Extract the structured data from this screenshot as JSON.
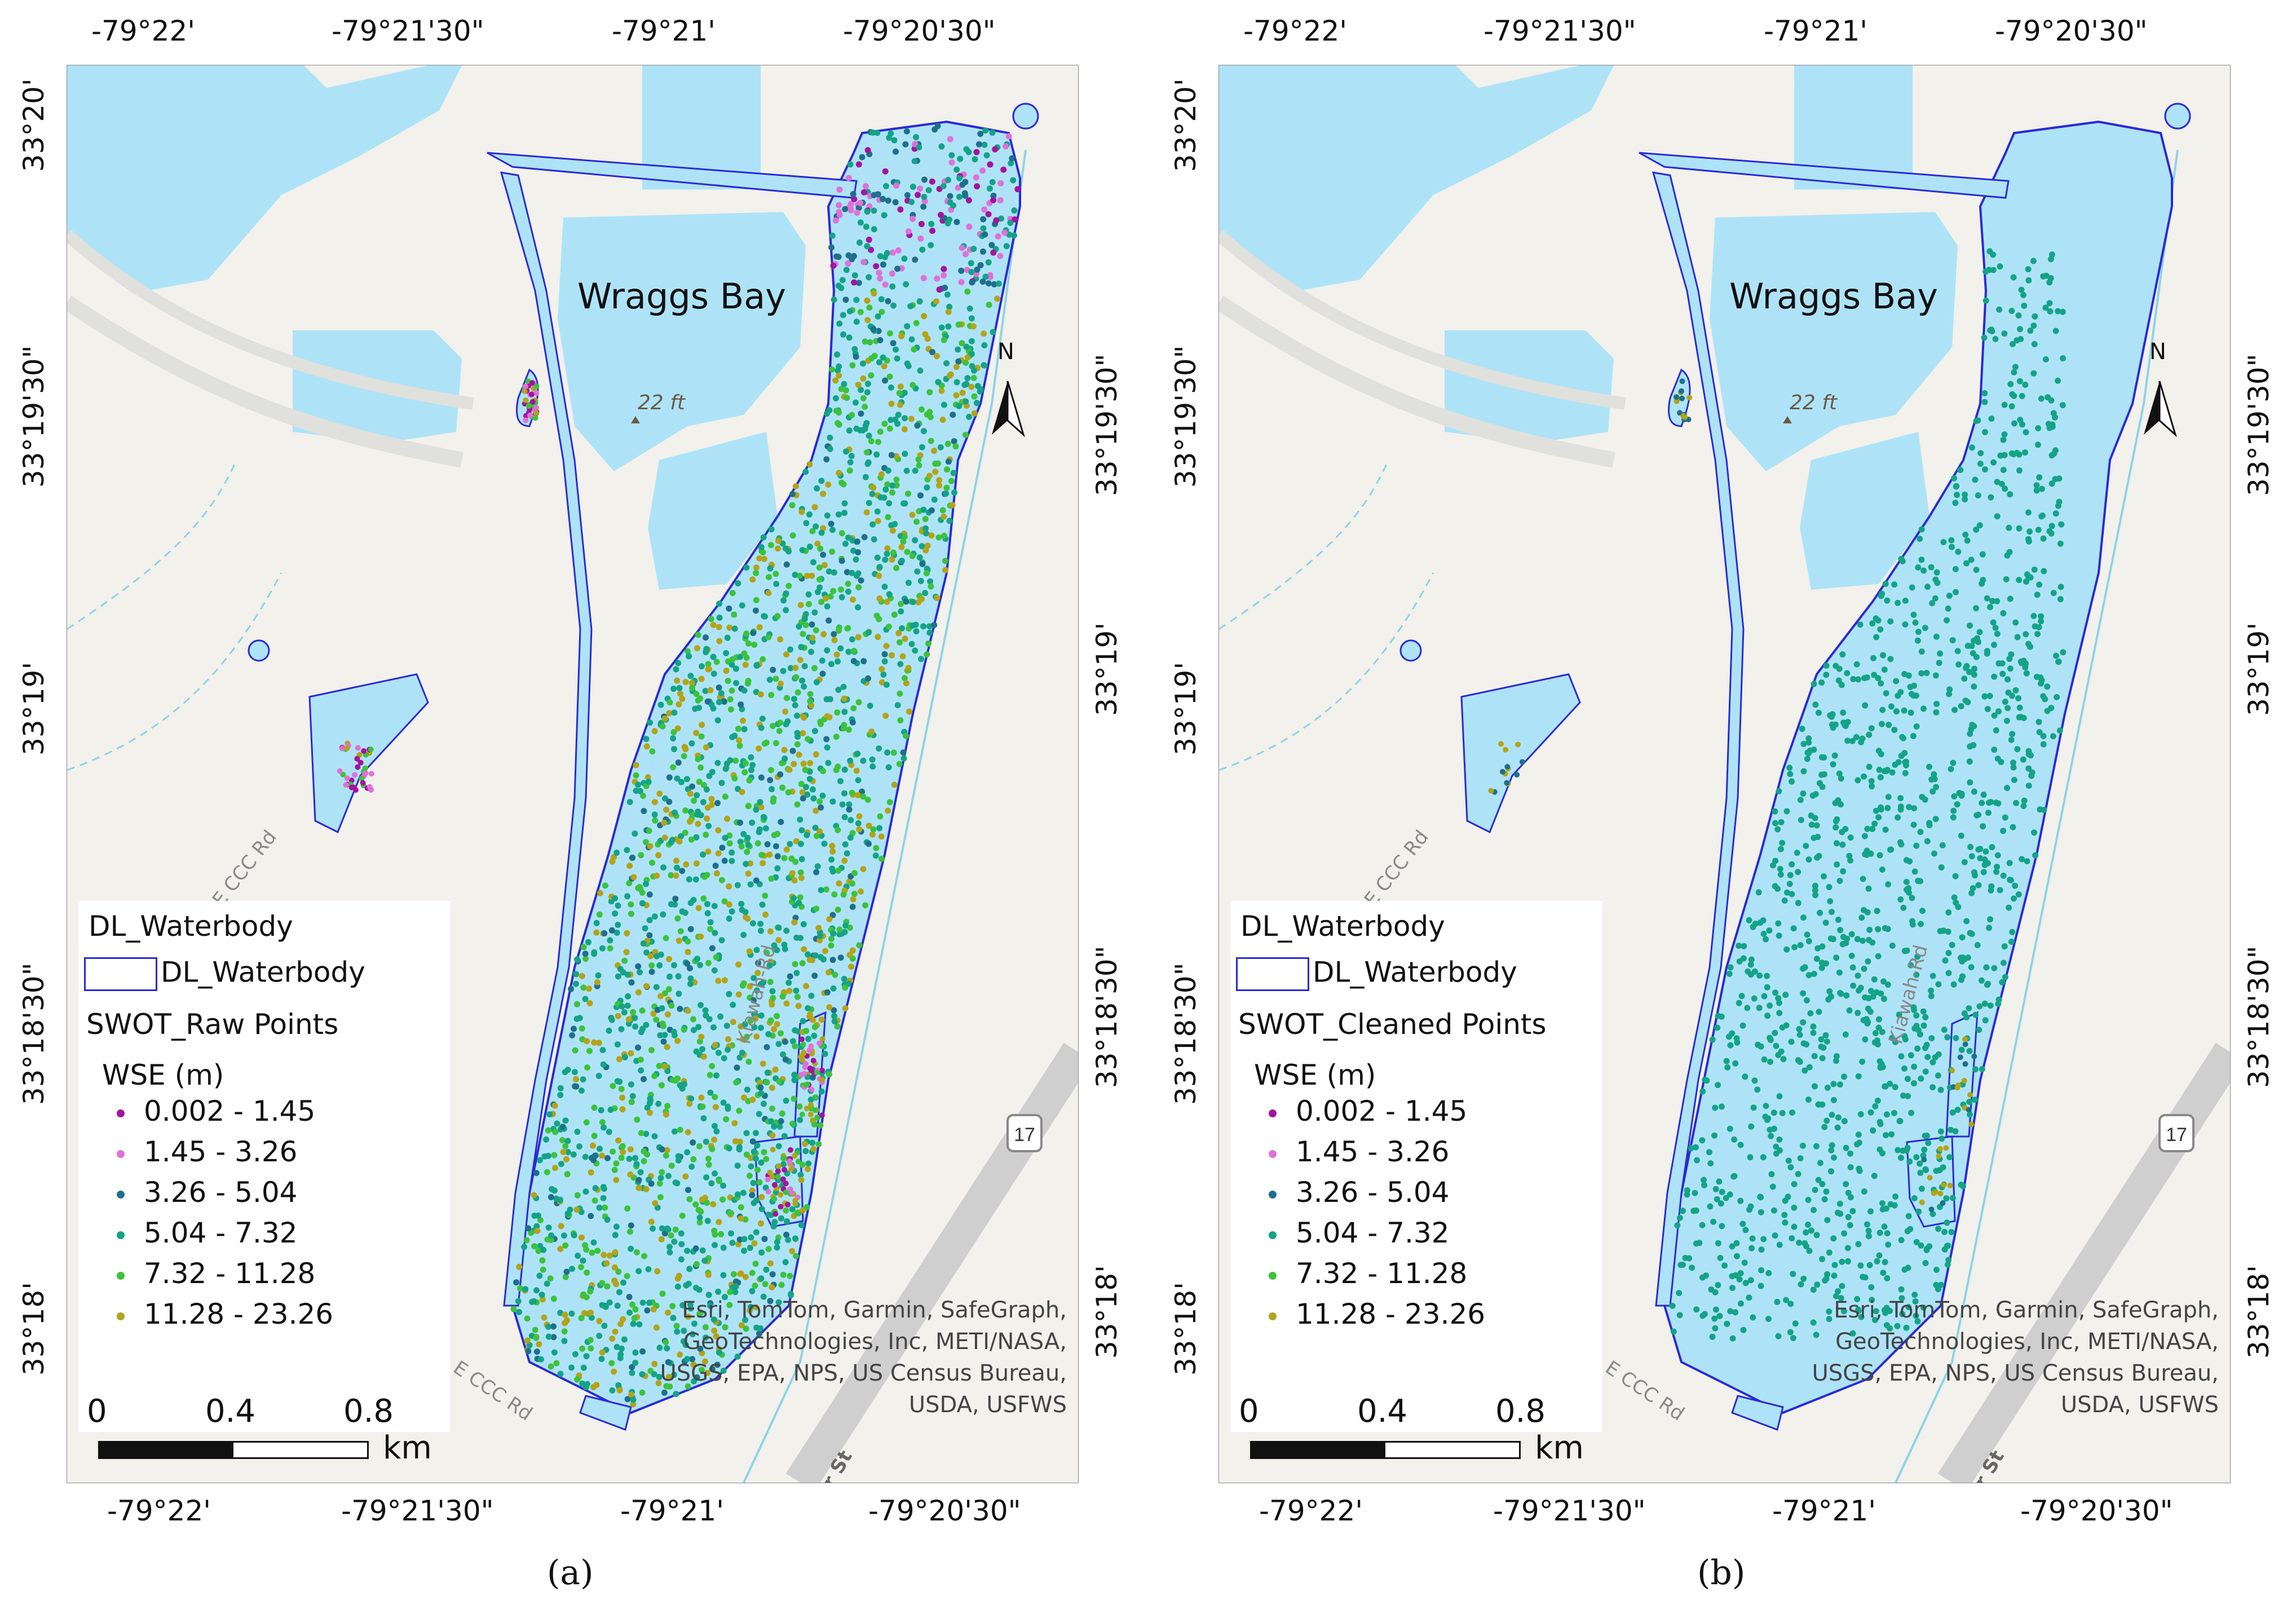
{
  "panels": [
    {
      "id": "a",
      "caption": "(a)",
      "top_ticks": [
        "-79°22'",
        "-79°21'30\"",
        "-79°21'",
        "-79°20'30\""
      ],
      "bottom_ticks": [
        "-79°22'",
        "-79°21'30\"",
        "-79°21'",
        "-79°20'30\""
      ],
      "left_ticks": [
        "33°20'",
        "33°19'30\"",
        "33°19'",
        "33°18'30\"",
        "33°18'"
      ],
      "right_ticks": [
        "33°19'30\"",
        "33°19'",
        "33°18'30\"",
        "33°18'"
      ],
      "place_label": "Wraggs Bay",
      "elevation_label": "22 ft",
      "road_labels": [
        "E CCC Rd",
        "Kiawah-Rd",
        "E CCC Rd",
        "er St"
      ],
      "highway_shield": "17",
      "north_label": "N",
      "legend": {
        "group1_title": "DL_Waterbody",
        "group1_item": "DL_Waterbody",
        "group2_title": "SWOT_Raw Points",
        "field": "WSE (m)",
        "classes": [
          "0.002 - 1.45",
          "1.45 - 3.26",
          "3.26 - 5.04",
          "5.04 - 7.32",
          "7.32 - 11.28",
          "11.28 - 23.26"
        ]
      },
      "scale": {
        "labels": [
          "0",
          "0.4",
          "0.8"
        ],
        "unit": "km"
      },
      "attribution": [
        "Esri, TomTom, Garmin, SafeGraph,",
        "GeoTechnologies, Inc, METI/NASA,",
        "USGS, EPA, NPS, US Census Bureau,",
        "USDA, USFWS"
      ]
    },
    {
      "id": "b",
      "caption": "(b)",
      "top_ticks": [
        "-79°22'",
        "-79°21'30\"",
        "-79°21'",
        "-79°20'30\""
      ],
      "bottom_ticks": [
        "-79°22'",
        "-79°21'30\"",
        "-79°21'",
        "-79°20'30\""
      ],
      "left_ticks": [
        "33°20'",
        "33°19'30\"",
        "33°19'",
        "33°18'30\"",
        "33°18'"
      ],
      "right_ticks": [
        "33°19'30\"",
        "33°19'",
        "33°18'30\"",
        "33°18'"
      ],
      "place_label": "Wraggs Bay",
      "elevation_label": "22 ft",
      "road_labels": [
        "E CCC Rd",
        "Kiawah-Rd",
        "E CCC Rd",
        "er St"
      ],
      "highway_shield": "17",
      "north_label": "N",
      "legend": {
        "group1_title": "DL_Waterbody",
        "group1_item": "DL_Waterbody",
        "group2_title": "SWOT_Cleaned Points",
        "field": "WSE (m)",
        "classes": [
          "0.002 - 1.45",
          "1.45 - 3.26",
          "3.26 - 5.04",
          "5.04 - 7.32",
          "7.32 - 11.28",
          "11.28 - 23.26"
        ]
      },
      "scale": {
        "labels": [
          "0",
          "0.4",
          "0.8"
        ],
        "unit": "km"
      },
      "attribution": [
        "Esri, TomTom, Garmin, SafeGraph,",
        "GeoTechnologies, Inc, METI/NASA,",
        "USGS, EPA, NPS, US Census Bureau,",
        "USDA, USFWS"
      ]
    }
  ],
  "class_colors": [
    "#a5139f",
    "#e070d8",
    "#1f6f8b",
    "#14a386",
    "#3cc23c",
    "#b3a318"
  ],
  "water_color": "#aee3f7",
  "outline_color": "#2a2ad6"
}
